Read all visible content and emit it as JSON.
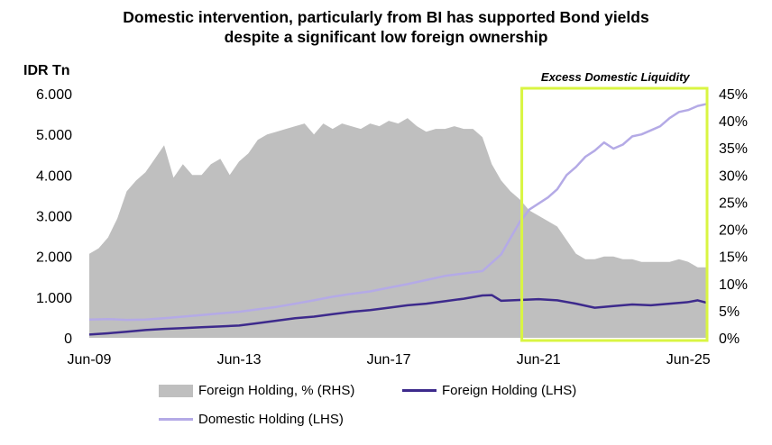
{
  "chart_data": {
    "type": "area",
    "title": "Domestic intervention, particularly from BI has supported Bond yields despite a significant low foreign ownership",
    "ylabel": "IDR Tn",
    "ylim": [
      0,
      6000
    ],
    "y2lim": [
      0,
      45
    ],
    "y_ticks": [
      "0",
      "1.000",
      "2.000",
      "3.000",
      "4.000",
      "5.000",
      "6.000"
    ],
    "y2_ticks": [
      "0%",
      "5%",
      "10%",
      "15%",
      "20%",
      "25%",
      "30%",
      "35%",
      "40%",
      "45%"
    ],
    "x_ticks": [
      "Jun-09",
      "Jun-13",
      "Jun-17",
      "Jun-21",
      "Jun-25"
    ],
    "x_tick_values": [
      2009.5,
      2013.5,
      2017.5,
      2021.5,
      2025.5
    ],
    "xlim": [
      2009.5,
      2026.0
    ],
    "annotation": "Excess Domestic Liquidity",
    "highlight_range": [
      2021.1,
      2026.0
    ],
    "grid": false,
    "legend_position": "bottom",
    "series": [
      {
        "name": "Foreign Holding, % (RHS)",
        "type": "area",
        "axis": "right",
        "color": "#bfbfbf",
        "x": [
          2009.5,
          2009.75,
          2010.0,
          2010.25,
          2010.5,
          2010.75,
          2011.0,
          2011.25,
          2011.5,
          2011.75,
          2012.0,
          2012.25,
          2012.5,
          2012.75,
          2013.0,
          2013.25,
          2013.5,
          2013.75,
          2014.0,
          2014.25,
          2014.5,
          2014.75,
          2015.0,
          2015.25,
          2015.5,
          2015.75,
          2016.0,
          2016.25,
          2016.5,
          2016.75,
          2017.0,
          2017.25,
          2017.5,
          2017.75,
          2018.0,
          2018.25,
          2018.5,
          2018.75,
          2019.0,
          2019.25,
          2019.5,
          2019.75,
          2020.0,
          2020.25,
          2020.5,
          2020.75,
          2021.0,
          2021.25,
          2021.5,
          2021.75,
          2022.0,
          2022.25,
          2022.5,
          2022.75,
          2023.0,
          2023.25,
          2023.5,
          2023.75,
          2024.0,
          2024.25,
          2024.5,
          2024.75,
          2025.0,
          2025.25,
          2025.5,
          2025.75,
          2026.0
        ],
        "values": [
          15.5,
          16.5,
          18.5,
          22.0,
          27.0,
          29.0,
          30.5,
          33.0,
          35.5,
          29.5,
          32.0,
          30.0,
          30.0,
          32.0,
          33.0,
          30.0,
          32.5,
          34.0,
          36.5,
          37.5,
          38.0,
          38.5,
          39.0,
          39.5,
          37.5,
          39.5,
          38.5,
          39.5,
          39.0,
          38.5,
          39.5,
          39.0,
          40.0,
          39.5,
          40.5,
          39.0,
          38.0,
          38.5,
          38.5,
          39.0,
          38.5,
          38.5,
          37.0,
          32.0,
          29.0,
          27.0,
          25.5,
          23.5,
          22.5,
          21.5,
          20.5,
          18.0,
          15.5,
          14.5,
          14.5,
          15.0,
          15.0,
          14.5,
          14.5,
          14.0,
          14.0,
          14.0,
          14.0,
          14.5,
          14.0,
          13.0,
          13.0
        ]
      },
      {
        "name": "Foreign Holding (LHS)",
        "type": "line",
        "axis": "left",
        "color": "#3d2a8c",
        "x": [
          2009.5,
          2010.0,
          2010.5,
          2011.0,
          2011.5,
          2012.0,
          2012.5,
          2013.0,
          2013.5,
          2014.0,
          2014.5,
          2015.0,
          2015.5,
          2016.0,
          2016.5,
          2017.0,
          2017.5,
          2018.0,
          2018.5,
          2019.0,
          2019.5,
          2020.0,
          2020.25,
          2020.5,
          2021.0,
          2021.5,
          2022.0,
          2022.5,
          2023.0,
          2023.5,
          2024.0,
          2024.5,
          2025.0,
          2025.5,
          2025.75,
          2026.0
        ],
        "values": [
          80,
          110,
          150,
          190,
          220,
          240,
          260,
          280,
          300,
          360,
          420,
          480,
          520,
          580,
          640,
          680,
          740,
          800,
          840,
          900,
          960,
          1040,
          1050,
          910,
          930,
          950,
          920,
          840,
          740,
          780,
          820,
          800,
          840,
          880,
          920,
          860
        ]
      },
      {
        "name": "Domestic Holding (LHS)",
        "type": "line",
        "axis": "left",
        "color": "#b4aae6",
        "x": [
          2009.5,
          2010.0,
          2010.5,
          2011.0,
          2011.5,
          2012.0,
          2012.5,
          2013.0,
          2013.5,
          2014.0,
          2014.5,
          2015.0,
          2015.5,
          2016.0,
          2016.5,
          2017.0,
          2017.5,
          2018.0,
          2018.5,
          2019.0,
          2019.5,
          2020.0,
          2020.5,
          2020.75,
          2021.0,
          2021.25,
          2021.5,
          2021.75,
          2022.0,
          2022.25,
          2022.5,
          2022.75,
          2023.0,
          2023.25,
          2023.5,
          2023.75,
          2024.0,
          2024.25,
          2024.5,
          2024.75,
          2025.0,
          2025.25,
          2025.5,
          2025.75,
          2026.0
        ],
        "values": [
          450,
          460,
          440,
          450,
          480,
          520,
          560,
          600,
          640,
          700,
          760,
          840,
          920,
          1010,
          1080,
          1140,
          1230,
          1320,
          1420,
          1520,
          1580,
          1640,
          2050,
          2450,
          2850,
          3150,
          3300,
          3450,
          3650,
          4000,
          4200,
          4450,
          4600,
          4800,
          4650,
          4750,
          4950,
          5000,
          5100,
          5200,
          5400,
          5550,
          5600,
          5700,
          5750
        ]
      }
    ]
  }
}
